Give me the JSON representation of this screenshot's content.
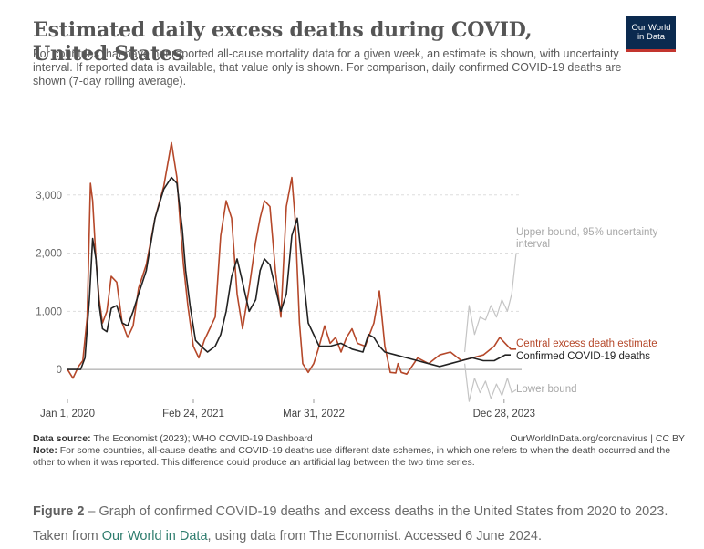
{
  "header": {
    "title": "Estimated daily excess deaths during COVID, United States",
    "subtitle": "For countries that have not reported all-cause mortality data for a given week, an estimate is shown, with uncertainty interval. If reported data is available, that value only is shown. For comparison, daily confirmed COVID-19 deaths are shown (7-day rolling average).",
    "logo_line1": "Our World",
    "logo_line2": "in Data"
  },
  "footer": {
    "source_label": "Data source:",
    "source_text": "The Economist (2023); WHO COVID-19 Dashboard",
    "source_right": "OurWorldInData.org/coronavirus | CC BY",
    "note_label": "Note:",
    "note_text": "For some countries, all-cause deaths and COVID-19 deaths use different date schemes, in which one refers to when the death occurred and the other to when it was reported. This difference could produce an artificial lag between the two time series."
  },
  "caption": {
    "fig_label": "Figure 2",
    "text1": " – Graph of confirmed COVID-19 deaths and excess deaths in the United States from 2020 to 2023. Taken from ",
    "link_text": "Our World in Data",
    "text2": ", using data from The Economist. Accessed 6 June 2024."
  },
  "colors": {
    "excess": "#b5482a",
    "confirmed": "#222222",
    "bounds": "#c4c4c4",
    "grid": "#dddddd",
    "axis_text": "#666666"
  },
  "chart_data": {
    "type": "line",
    "title": "Estimated daily excess deaths during COVID, United States",
    "x_unit": "years since Jan 1, 2020",
    "xlim": [
      0,
      4.15
    ],
    "ylim": [
      -500,
      4000
    ],
    "y_ticks": [
      0,
      1000,
      2000,
      3000
    ],
    "y_tick_labels": [
      "0",
      "1,000",
      "2,000",
      "3,000"
    ],
    "x_ticks": [
      {
        "x": 0.0,
        "label": "Jan 1, 2020"
      },
      {
        "x": 1.15,
        "label": "Feb 24, 2021"
      },
      {
        "x": 2.25,
        "label": "Mar 31, 2022"
      },
      {
        "x": 3.99,
        "label": "Dec 28, 2023"
      }
    ],
    "grid": true,
    "series": [
      {
        "name": "Central excess death estimate",
        "label": "Central excess death estimate",
        "color": "#b5482a",
        "x": [
          0.0,
          0.05,
          0.1,
          0.14,
          0.18,
          0.21,
          0.23,
          0.26,
          0.29,
          0.32,
          0.36,
          0.4,
          0.45,
          0.5,
          0.55,
          0.6,
          0.65,
          0.72,
          0.8,
          0.88,
          0.95,
          1.0,
          1.03,
          1.06,
          1.1,
          1.15,
          1.2,
          1.25,
          1.3,
          1.35,
          1.4,
          1.45,
          1.5,
          1.55,
          1.6,
          1.66,
          1.72,
          1.76,
          1.8,
          1.85,
          1.9,
          1.95,
          2.0,
          2.05,
          2.08,
          2.12,
          2.15,
          2.2,
          2.25,
          2.3,
          2.35,
          2.4,
          2.45,
          2.5,
          2.55,
          2.6,
          2.65,
          2.72,
          2.8,
          2.85,
          2.9,
          2.95,
          3.0,
          3.02,
          3.05,
          3.1,
          3.2,
          3.3,
          3.4,
          3.5,
          3.6,
          3.7,
          3.8,
          3.9,
          3.95,
          4.0,
          4.05,
          4.1
        ],
        "y": [
          0,
          -150,
          50,
          150,
          900,
          3200,
          2900,
          1900,
          1200,
          800,
          1000,
          1600,
          1500,
          800,
          550,
          750,
          1400,
          1800,
          2600,
          3150,
          3900,
          3300,
          2500,
          1800,
          1100,
          400,
          200,
          500,
          700,
          900,
          2300,
          2900,
          2600,
          1300,
          700,
          1400,
          2200,
          2600,
          2900,
          2800,
          1700,
          900,
          2800,
          3300,
          2600,
          800,
          100,
          -50,
          100,
          400,
          750,
          450,
          550,
          300,
          550,
          700,
          450,
          400,
          800,
          1350,
          400,
          -50,
          -60,
          100,
          -50,
          -80,
          200,
          100,
          250,
          300,
          150,
          200,
          250,
          400,
          550,
          450,
          350,
          350
        ]
      },
      {
        "name": "Confirmed COVID-19 deaths",
        "label": "Confirmed COVID-19 deaths",
        "color": "#222222",
        "x": [
          0.0,
          0.12,
          0.16,
          0.2,
          0.23,
          0.26,
          0.29,
          0.32,
          0.36,
          0.4,
          0.45,
          0.5,
          0.55,
          0.6,
          0.65,
          0.72,
          0.8,
          0.88,
          0.95,
          1.0,
          1.05,
          1.08,
          1.12,
          1.17,
          1.22,
          1.28,
          1.35,
          1.4,
          1.45,
          1.5,
          1.55,
          1.6,
          1.66,
          1.72,
          1.76,
          1.8,
          1.85,
          1.9,
          1.95,
          2.0,
          2.05,
          2.1,
          2.15,
          2.2,
          2.3,
          2.4,
          2.5,
          2.6,
          2.7,
          2.75,
          2.8,
          2.85,
          2.9,
          3.0,
          3.1,
          3.2,
          3.3,
          3.4,
          3.5,
          3.6,
          3.7,
          3.8,
          3.9,
          4.0,
          4.05
        ],
        "y": [
          0,
          0,
          200,
          1200,
          2250,
          1900,
          1100,
          700,
          650,
          1050,
          1100,
          800,
          750,
          1000,
          1300,
          1700,
          2600,
          3100,
          3300,
          3200,
          2400,
          1700,
          1100,
          500,
          400,
          300,
          400,
          600,
          1000,
          1600,
          1900,
          1500,
          1000,
          1200,
          1700,
          1900,
          1800,
          1400,
          1000,
          1300,
          2300,
          2600,
          1700,
          800,
          400,
          400,
          450,
          350,
          300,
          600,
          550,
          400,
          300,
          250,
          200,
          150,
          100,
          50,
          100,
          150,
          200,
          150,
          150,
          250,
          250
        ]
      },
      {
        "name": "Upper bound, 95% uncertainty interval",
        "label": "Upper bound, 95% uncertainty interval",
        "color": "#c4c4c4",
        "x": [
          3.63,
          3.67,
          3.72,
          3.77,
          3.82,
          3.87,
          3.92,
          3.97,
          4.02,
          4.06,
          4.1
        ],
        "y": [
          300,
          1100,
          600,
          900,
          850,
          1100,
          900,
          1200,
          1000,
          1300,
          2000
        ]
      },
      {
        "name": "Lower bound",
        "label": "Lower bound",
        "color": "#c4c4c4",
        "x": [
          3.63,
          3.67,
          3.72,
          3.77,
          3.82,
          3.87,
          3.92,
          3.97,
          4.02,
          4.06,
          4.1
        ],
        "y": [
          100,
          -550,
          -150,
          -400,
          -200,
          -500,
          -250,
          -450,
          -150,
          -400,
          -350
        ]
      }
    ]
  }
}
